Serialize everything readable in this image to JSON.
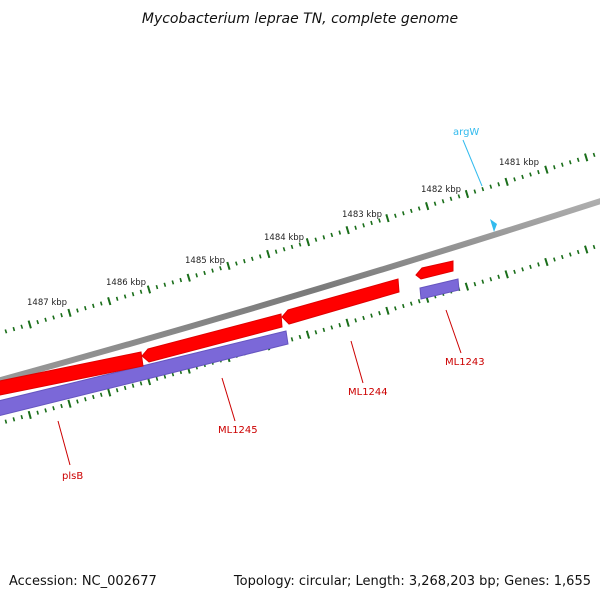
{
  "title": "Mycobacterium leprae TN, complete genome",
  "footer": {
    "accession": "Accession: NC_002677",
    "topology": "Topology: circular; Length: 3,268,203 bp; Genes: 1,655"
  },
  "ticks": [
    {
      "label": "1481 kbp",
      "kbp": 1481
    },
    {
      "label": "1482 kbp",
      "kbp": 1482
    },
    {
      "label": "1483 kbp",
      "kbp": 1483
    },
    {
      "label": "1484 kbp",
      "kbp": 1484
    },
    {
      "label": "1485 kbp",
      "kbp": 1485
    },
    {
      "label": "1486 kbp",
      "kbp": 1486
    },
    {
      "label": "1487 kbp",
      "kbp": 1487
    }
  ],
  "features": [
    {
      "name": "argW",
      "type": "tRNA",
      "strand": "+"
    },
    {
      "name": "ML1243",
      "type": "CDS",
      "strand": "-"
    },
    {
      "name": "ML1244",
      "type": "CDS",
      "strand": "-"
    },
    {
      "name": "ML1245",
      "type": "CDS",
      "strand": "-"
    },
    {
      "name": "plsB",
      "type": "CDS",
      "strand": "-"
    }
  ],
  "colors": {
    "backbone": "#808080",
    "cds": "#ff0000",
    "gene": "#7b68d8",
    "trna": "#33bbee",
    "label_red": "#cc0000",
    "label_trna": "#33bbee",
    "ticks": "#1a6e1a",
    "tick_text": "#222222"
  }
}
